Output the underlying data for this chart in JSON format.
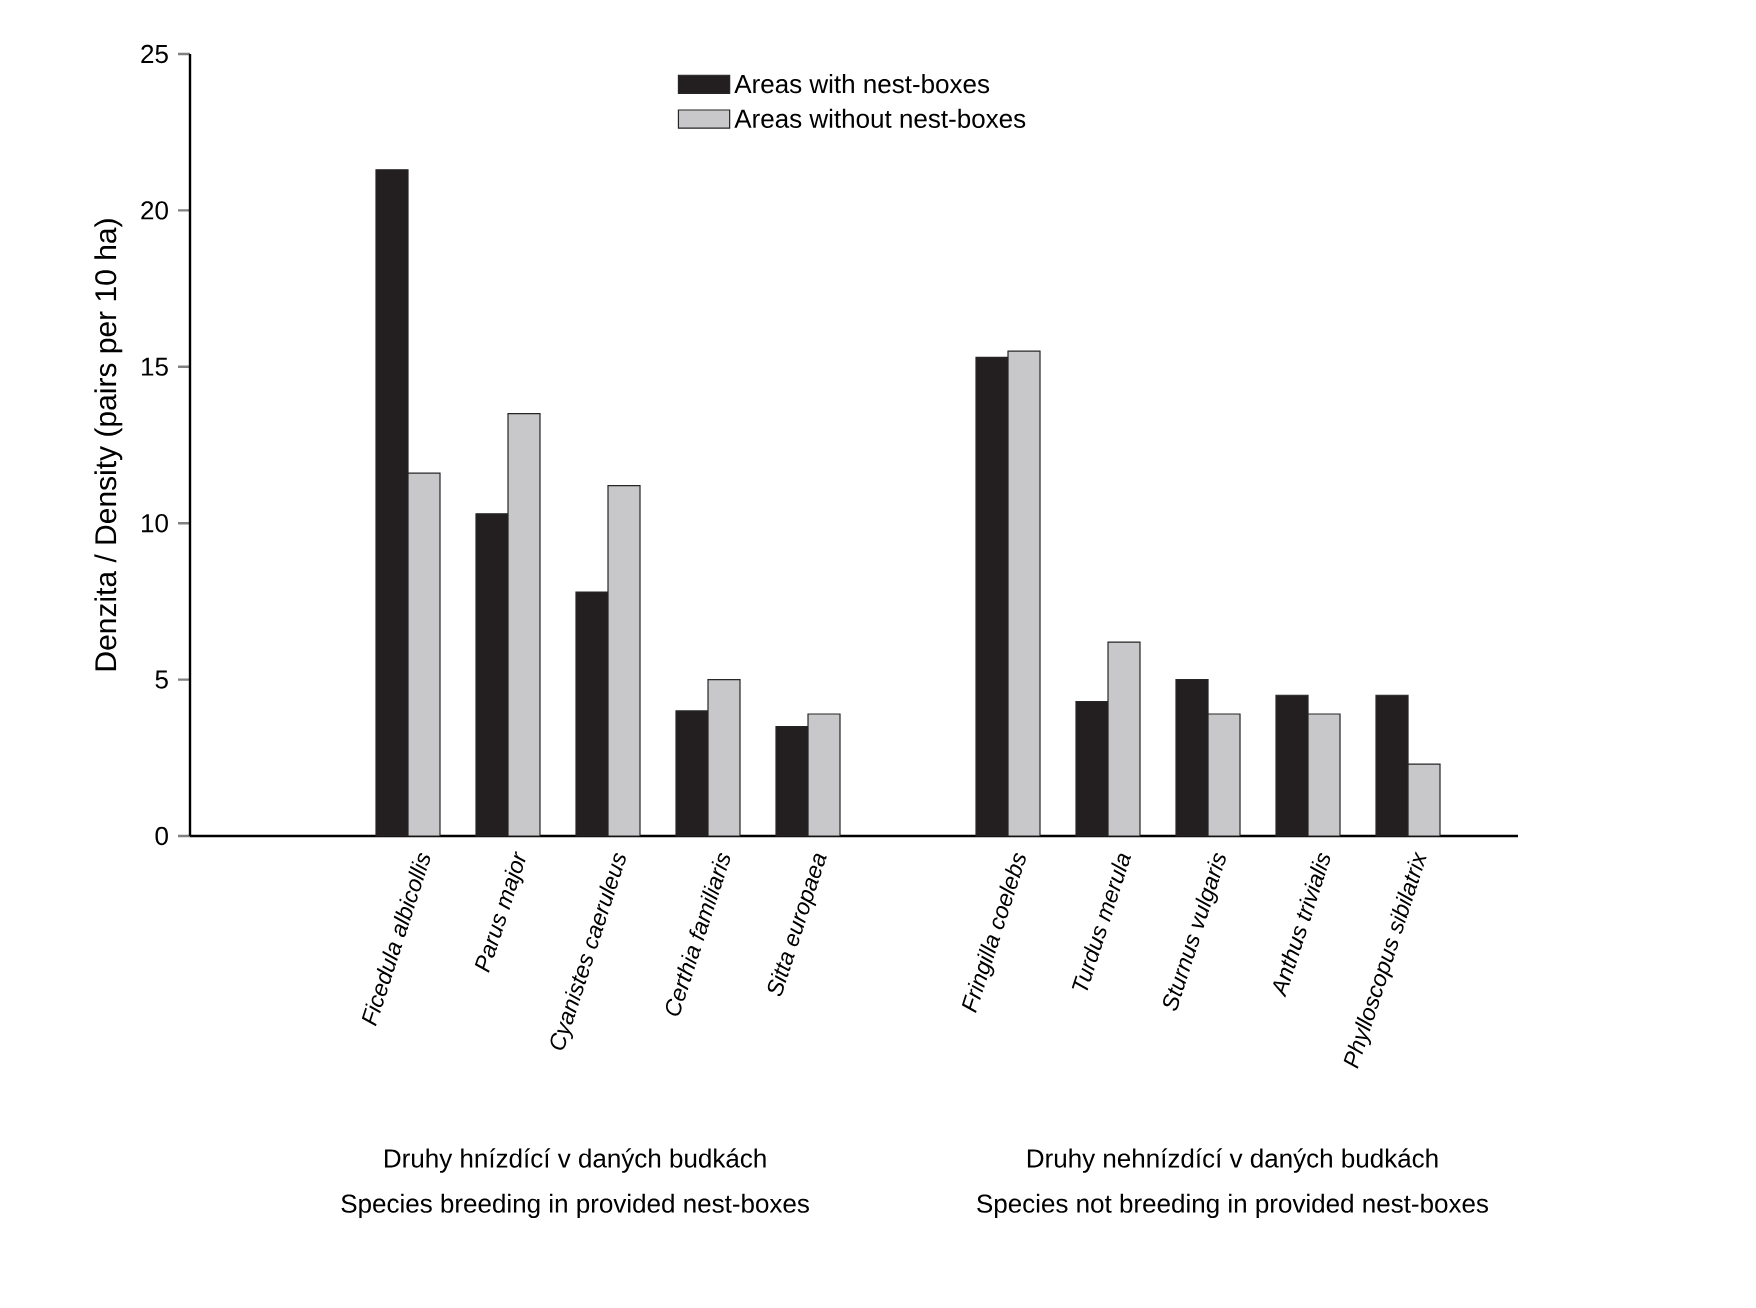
{
  "chart_data": {
    "type": "bar",
    "ylabel": "Denzita / Density (pairs per 10 ha)",
    "categories": [
      "Ficedula albicollis",
      "Parus major",
      "Cyanistes caeruleus",
      "Certhia familiaris",
      "Sitta europaea",
      null,
      "Fringilla coelebs",
      "Turdus merula",
      "Sturnus vulgaris",
      "Anthus trivialis",
      "Phylloscopus sibilatrix"
    ],
    "series": [
      {
        "name": "Areas with nest-boxes",
        "color": "#231f20",
        "values": [
          21.3,
          10.3,
          7.8,
          4.0,
          3.5,
          null,
          15.3,
          4.3,
          5.0,
          4.5,
          4.5
        ]
      },
      {
        "name": "Areas without nest-boxes",
        "color": "#c8c8ca",
        "values": [
          11.6,
          13.5,
          11.2,
          5.0,
          3.9,
          null,
          15.5,
          6.2,
          3.9,
          3.9,
          2.3
        ]
      }
    ],
    "ylim": [
      0,
      25
    ],
    "yticks": [
      0,
      5,
      10,
      15,
      20,
      25
    ],
    "legend": "top",
    "grid": false,
    "annotations": [
      "Druhy hnízdící v daných budkách",
      "Species breeding in provided nest-boxes",
      "Druhy nehnízdící v daných budkách",
      "Species not breeding in provided nest-boxes"
    ]
  }
}
